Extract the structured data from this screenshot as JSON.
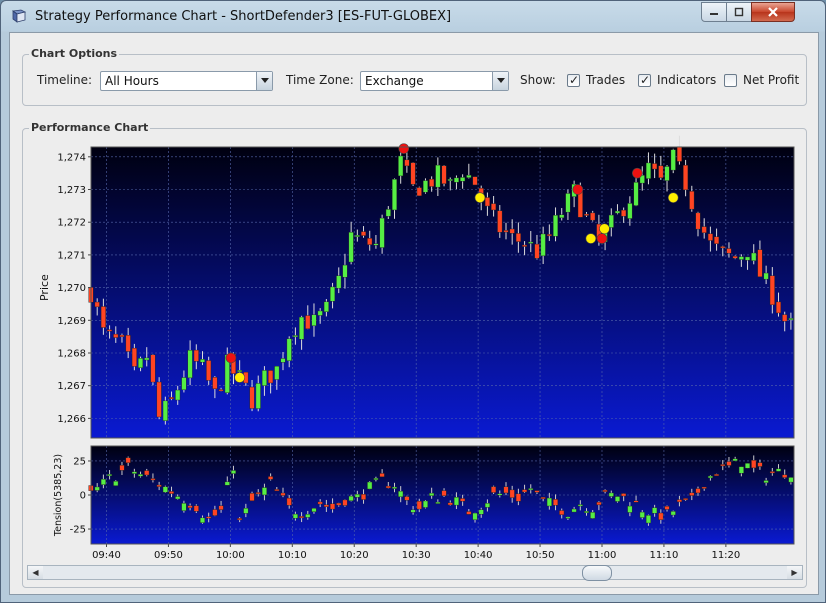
{
  "window": {
    "title": "Strategy Performance Chart -  ShortDefender3 [ES-FUT-GLOBEX]",
    "app_icon": "book-icon",
    "controls": [
      "minimize-icon",
      "maximize-icon",
      "close-icon"
    ]
  },
  "options": {
    "legend": "Chart Options",
    "timeline_label": "Timeline:",
    "timeline_value": "All Hours",
    "timezone_label": "Time Zone:",
    "timezone_value": "Exchange",
    "show_label": "Show:",
    "checkboxes": [
      {
        "label": "Trades",
        "checked": true
      },
      {
        "label": "Indicators",
        "checked": true
      },
      {
        "label": "Net Profit",
        "checked": false
      }
    ]
  },
  "performance": {
    "legend": "Performance Chart"
  },
  "chart_data": [
    {
      "type": "candlestick",
      "ylabel": "Price",
      "ylim": [
        1265.4,
        1274.3
      ],
      "yticks": [
        "1,274",
        "1,273",
        "1,272",
        "1,271",
        "1,270",
        "1,269",
        "1,268",
        "1,267",
        "1,266"
      ],
      "ytick_values": [
        1274,
        1273,
        1272,
        1271,
        1270,
        1269,
        1268,
        1267,
        1266
      ],
      "xticks": [
        "09:40",
        "09:50",
        "10:00",
        "10:10",
        "10:20",
        "10:30",
        "10:40",
        "10:50",
        "11:00",
        "11:10",
        "11:20"
      ],
      "xtick_minutes": [
        579.5,
        589.5,
        599.5,
        609.5,
        619.5,
        629.5,
        639.5,
        649.5,
        659.5,
        669.5,
        679.5
      ],
      "x_range_minutes": [
        577,
        690.5
      ],
      "colors": {
        "up": "#55ee44",
        "down": "#ff4422",
        "bg_top": "#000010",
        "bg_bottom": "#0a1ad2",
        "entry": "#ee1111",
        "exit": "#ffee00"
      },
      "close_path": [
        [
          577,
          1269.9
        ],
        [
          579,
          1268.6
        ],
        [
          582,
          1268.2
        ],
        [
          584,
          1267.3
        ],
        [
          586,
          1267.9
        ],
        [
          588,
          1266.0
        ],
        [
          590,
          1266.5
        ],
        [
          593,
          1267.8
        ],
        [
          595,
          1267.5
        ],
        [
          597,
          1266.7
        ],
        [
          599,
          1267.6
        ],
        [
          601,
          1267.2
        ],
        [
          603,
          1266.6
        ],
        [
          605,
          1267.2
        ],
        [
          607,
          1267.5
        ],
        [
          609,
          1268.6
        ],
        [
          611,
          1269.1
        ],
        [
          613,
          1268.9
        ],
        [
          615,
          1269.3
        ],
        [
          617,
          1270.2
        ],
        [
          619,
          1271.6
        ],
        [
          621,
          1271.4
        ],
        [
          623,
          1271.3
        ],
        [
          625,
          1272.6
        ],
        [
          627,
          1273.8
        ],
        [
          629,
          1273.0
        ],
        [
          631,
          1273.2
        ],
        [
          633,
          1273.4
        ],
        [
          635,
          1273.1
        ],
        [
          637,
          1273.6
        ],
        [
          639,
          1273.2
        ],
        [
          641,
          1272.3
        ],
        [
          643,
          1271.8
        ],
        [
          645,
          1271.5
        ],
        [
          647,
          1271.4
        ],
        [
          649,
          1271.1
        ],
        [
          651,
          1271.6
        ],
        [
          653,
          1272.3
        ],
        [
          655,
          1272.9
        ],
        [
          657,
          1272.1
        ],
        [
          659,
          1271.4
        ],
        [
          661,
          1271.9
        ],
        [
          663,
          1272.5
        ],
        [
          665,
          1273.0
        ],
        [
          667,
          1273.6
        ],
        [
          669,
          1273.2
        ],
        [
          671,
          1273.9
        ],
        [
          673,
          1273.2
        ],
        [
          675,
          1272.1
        ],
        [
          677,
          1271.3
        ],
        [
          679,
          1271.0
        ],
        [
          681,
          1270.9
        ],
        [
          683,
          1271.2
        ],
        [
          685,
          1270.4
        ],
        [
          687,
          1269.8
        ],
        [
          689,
          1269.0
        ],
        [
          690.5,
          1268.7
        ]
      ],
      "markers": [
        {
          "x": 599.6,
          "price": 1267.85,
          "kind": "entry"
        },
        {
          "x": 601.0,
          "price": 1267.25,
          "kind": "exit"
        },
        {
          "x": 627.5,
          "price": 1274.25,
          "kind": "entry"
        },
        {
          "x": 639.8,
          "price": 1272.75,
          "kind": "exit"
        },
        {
          "x": 655.6,
          "price": 1273.0,
          "kind": "entry"
        },
        {
          "x": 657.7,
          "price": 1271.5,
          "kind": "exit"
        },
        {
          "x": 659.5,
          "price": 1271.5,
          "kind": "entry"
        },
        {
          "x": 659.9,
          "price": 1271.8,
          "kind": "exit"
        },
        {
          "x": 665.2,
          "price": 1273.5,
          "kind": "entry"
        },
        {
          "x": 671.0,
          "price": 1272.75,
          "kind": "exit"
        }
      ]
    },
    {
      "type": "bar",
      "ylabel": "Tension(5385,23)",
      "ylim": [
        -36,
        36
      ],
      "yticks": [
        "25",
        "0",
        "-25"
      ],
      "ytick_values": [
        25,
        0,
        -25
      ],
      "x_range_minutes": [
        577,
        690.5
      ],
      "value_path": [
        [
          577,
          0
        ],
        [
          580,
          12
        ],
        [
          583,
          20
        ],
        [
          585,
          15
        ],
        [
          588,
          8
        ],
        [
          591,
          0
        ],
        [
          594,
          -8
        ],
        [
          596,
          -18
        ],
        [
          598,
          -12
        ],
        [
          600,
          22
        ],
        [
          601,
          -20
        ],
        [
          603,
          -5
        ],
        [
          606,
          8
        ],
        [
          609,
          -10
        ],
        [
          611,
          -12
        ],
        [
          614,
          -6
        ],
        [
          616,
          -10
        ],
        [
          618,
          -3
        ],
        [
          620,
          -2
        ],
        [
          622,
          5
        ],
        [
          624,
          10
        ],
        [
          626,
          8
        ],
        [
          628,
          -5
        ],
        [
          630,
          -10
        ],
        [
          632,
          -2
        ],
        [
          634,
          -1
        ],
        [
          636,
          -5
        ],
        [
          638,
          -12
        ],
        [
          640,
          -7
        ],
        [
          642,
          0
        ],
        [
          644,
          1
        ],
        [
          646,
          -2
        ],
        [
          648,
          5
        ],
        [
          650,
          -5
        ],
        [
          652,
          -8
        ],
        [
          654,
          -12
        ],
        [
          656,
          -6
        ],
        [
          658,
          -9
        ],
        [
          660,
          -1
        ],
        [
          662,
          0
        ],
        [
          664,
          -4
        ],
        [
          666,
          -10
        ],
        [
          668,
          -14
        ],
        [
          670,
          -15
        ],
        [
          672,
          -8
        ],
        [
          674,
          -5
        ],
        [
          676,
          10
        ],
        [
          678,
          18
        ],
        [
          680,
          20
        ],
        [
          682,
          25
        ],
        [
          684,
          18
        ],
        [
          686,
          15
        ],
        [
          688,
          17
        ],
        [
          690.5,
          18
        ]
      ]
    }
  ],
  "scroll": {
    "left_icon": "arrow-left-icon",
    "right_icon": "arrow-right-icon",
    "position": 0.75
  }
}
